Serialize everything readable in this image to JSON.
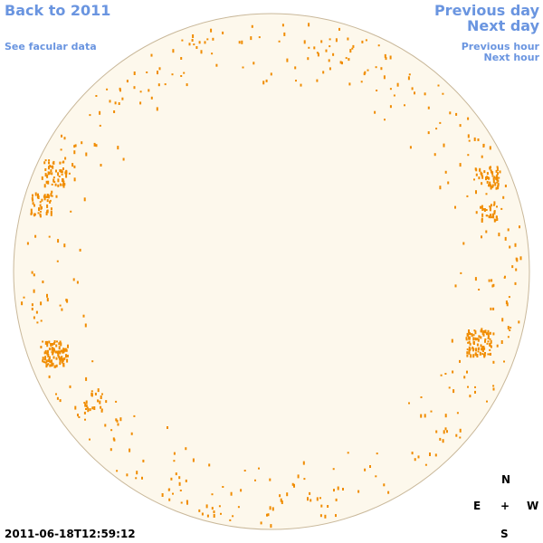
{
  "header": {
    "back_link": "Back to 2011",
    "facular_link": "See facular data",
    "previous_day": "Previous day",
    "next_day": "Next day",
    "previous_hour": "Previous hour",
    "next_hour": "Next hour"
  },
  "timestamp": "2011-06-18T12:59:12",
  "compass": {
    "north": "N",
    "east": "E",
    "center": "+",
    "west": "W",
    "south": "S"
  }
}
